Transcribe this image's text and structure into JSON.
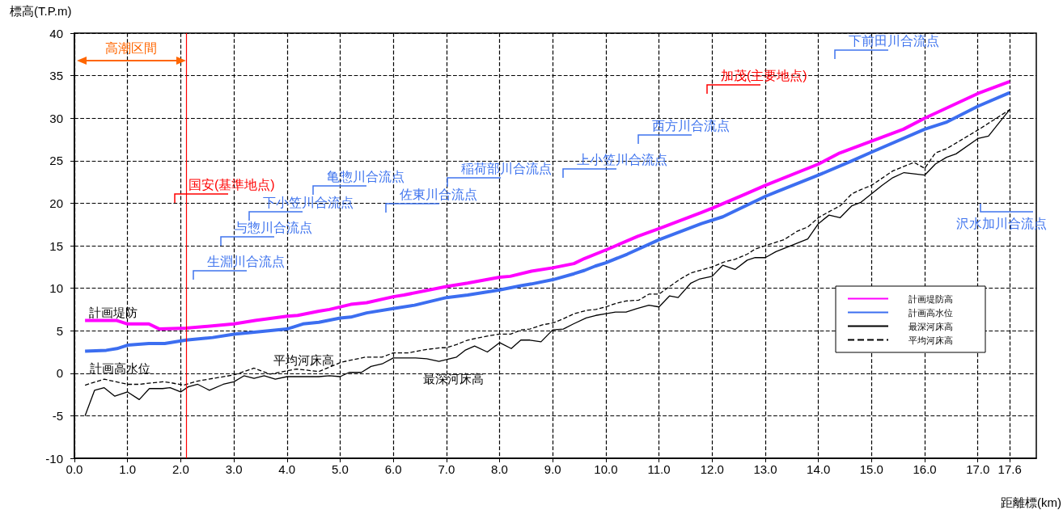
{
  "chart_data": {
    "type": "line",
    "xlabel": "距離標(km)",
    "ylabel": "標高(T.P.m)",
    "xlim": [
      0,
      18.1
    ],
    "ylim": [
      -10,
      40
    ],
    "xticks": [
      {
        "value": 0,
        "label": "0.0"
      },
      {
        "value": 1,
        "label": "1.0"
      },
      {
        "value": 2,
        "label": "2.0"
      },
      {
        "value": 3,
        "label": "3.0"
      },
      {
        "value": 4,
        "label": "4.0"
      },
      {
        "value": 5,
        "label": "5.0"
      },
      {
        "value": 6,
        "label": "6.0"
      },
      {
        "value": 7,
        "label": "7.0"
      },
      {
        "value": 8,
        "label": "8.0"
      },
      {
        "value": 9,
        "label": "9.0"
      },
      {
        "value": 10,
        "label": "10.0"
      },
      {
        "value": 11,
        "label": "11.0"
      },
      {
        "value": 12,
        "label": "12.0"
      },
      {
        "value": 13,
        "label": "13.0"
      },
      {
        "value": 14,
        "label": "14.0"
      },
      {
        "value": 15,
        "label": "15.0"
      },
      {
        "value": 16,
        "label": "16.0"
      },
      {
        "value": 17,
        "label": "17.0"
      },
      {
        "value": 17.6,
        "label": "17.6"
      }
    ],
    "yticks": [
      -10,
      -5,
      0,
      5,
      10,
      15,
      20,
      25,
      30,
      35,
      40
    ],
    "grid": true,
    "legend": "right",
    "marker": "none",
    "line_style": "solid",
    "series": [
      {
        "name": "計画堤防高",
        "color": "#ff00ff",
        "x": [
          0.2,
          0.8,
          1.0,
          1.4,
          1.6,
          2.1,
          3.0,
          3.4,
          4.0,
          4.2,
          4.6,
          4.8,
          5.2,
          5.5,
          6.0,
          6.2,
          7.0,
          7.4,
          8.0,
          8.2,
          8.6,
          9.0,
          9.4,
          9.6,
          10.0,
          10.6,
          11.0,
          11.8,
          12.0,
          12.6,
          13.0,
          14.0,
          14.4,
          15.0,
          15.6,
          16.0,
          17.0,
          17.6
        ],
        "values": [
          6.2,
          6.2,
          5.8,
          5.8,
          5.2,
          5.3,
          5.8,
          6.2,
          6.7,
          6.8,
          7.3,
          7.5,
          8.1,
          8.3,
          9.0,
          9.2,
          10.2,
          10.6,
          11.3,
          11.4,
          12.0,
          12.4,
          12.9,
          13.5,
          14.5,
          16.1,
          17.0,
          18.9,
          19.4,
          21.0,
          22.1,
          24.6,
          25.9,
          27.3,
          28.7,
          30.0,
          32.9,
          34.3
        ]
      },
      {
        "name": "計画高水位",
        "color": "#3c6ef0",
        "x": [
          0.2,
          0.6,
          0.8,
          1.0,
          1.4,
          1.7,
          2.1,
          2.6,
          3.0,
          4.0,
          4.3,
          4.6,
          5.0,
          5.2,
          5.5,
          6.0,
          6.4,
          7.0,
          7.4,
          8.0,
          8.4,
          8.6,
          9.0,
          9.4,
          9.6,
          9.8,
          10.0,
          10.4,
          11.0,
          11.8,
          12.2,
          13.0,
          13.2,
          14.0,
          14.6,
          15.0,
          16.0,
          16.4,
          17.0,
          17.6
        ],
        "values": [
          2.6,
          2.7,
          2.9,
          3.3,
          3.5,
          3.5,
          3.9,
          4.2,
          4.6,
          5.2,
          5.8,
          6.0,
          6.5,
          6.6,
          7.1,
          7.6,
          8.0,
          8.9,
          9.2,
          9.8,
          10.3,
          10.5,
          11.0,
          11.7,
          12.1,
          12.6,
          13.0,
          14.0,
          15.7,
          17.6,
          18.4,
          20.8,
          21.3,
          23.3,
          24.9,
          26.0,
          28.7,
          29.5,
          31.4,
          33.0
        ]
      },
      {
        "name": "最深河床高",
        "color": "#000000",
        "x": [
          0.2,
          0.38,
          0.56,
          0.76,
          1.0,
          1.22,
          1.41,
          1.66,
          1.8,
          2.0,
          2.14,
          2.32,
          2.54,
          2.8,
          3.0,
          3.19,
          3.38,
          3.57,
          3.78,
          4.0,
          4.6,
          4.8,
          5.0,
          5.17,
          5.4,
          5.58,
          5.79,
          6.0,
          6.42,
          6.63,
          6.86,
          7.0,
          7.19,
          7.35,
          7.53,
          7.77,
          8.0,
          8.22,
          8.4,
          8.57,
          8.78,
          9.0,
          9.2,
          9.39,
          9.63,
          9.81,
          10.0,
          10.18,
          10.38,
          10.58,
          10.81,
          11.0,
          11.2,
          11.36,
          11.6,
          11.77,
          12.0,
          12.2,
          12.43,
          12.66,
          12.81,
          13.0,
          13.2,
          13.4,
          13.8,
          14.0,
          14.2,
          14.41,
          14.63,
          14.8,
          15.0,
          15.2,
          15.4,
          15.61,
          16.0,
          16.2,
          16.41,
          16.59,
          17.0,
          17.2,
          17.43,
          17.6
        ],
        "values": [
          -5.0,
          -2.0,
          -1.7,
          -2.7,
          -2.2,
          -3.1,
          -1.8,
          -1.8,
          -1.7,
          -2.2,
          -1.6,
          -1.3,
          -2.0,
          -1.3,
          -1.0,
          -0.3,
          -0.6,
          -0.3,
          -0.7,
          -0.4,
          -0.4,
          -0.3,
          -0.4,
          0.1,
          0.1,
          0.8,
          1.1,
          1.8,
          1.8,
          1.7,
          1.4,
          1.6,
          1.9,
          2.7,
          3.2,
          2.5,
          3.6,
          2.9,
          3.9,
          3.9,
          3.7,
          5.1,
          5.2,
          5.8,
          6.5,
          6.8,
          7.0,
          7.2,
          7.2,
          7.6,
          8.0,
          7.8,
          9.1,
          8.9,
          10.6,
          11.1,
          11.4,
          12.7,
          12.2,
          13.3,
          13.6,
          13.6,
          14.3,
          14.8,
          15.8,
          17.6,
          18.6,
          18.3,
          19.7,
          20.1,
          21.1,
          22.1,
          23.0,
          23.6,
          23.3,
          24.6,
          25.4,
          25.8,
          27.6,
          27.9,
          29.7,
          31.0
        ]
      },
      {
        "name": "平均河床高",
        "color": "#000000",
        "line_style": "dashed",
        "x": [
          0.2,
          0.56,
          1.0,
          1.22,
          1.66,
          1.8,
          2.05,
          2.33,
          3.0,
          3.38,
          3.68,
          4.18,
          4.6,
          5.02,
          5.48,
          5.79,
          6.0,
          6.28,
          6.63,
          6.89,
          7.0,
          7.2,
          7.4,
          7.79,
          8.0,
          8.21,
          8.41,
          8.57,
          8.81,
          9.0,
          9.2,
          9.4,
          9.65,
          9.81,
          10.0,
          10.18,
          10.38,
          10.62,
          10.81,
          11.0,
          11.2,
          11.38,
          11.6,
          11.77,
          12.0,
          12.23,
          12.43,
          12.66,
          12.81,
          13.0,
          13.35,
          13.6,
          13.8,
          14.0,
          14.2,
          14.41,
          14.63,
          14.8,
          15.0,
          15.4,
          15.8,
          16.0,
          16.2,
          16.41,
          17.0,
          17.6
        ],
        "values": [
          -1.4,
          -0.7,
          -1.3,
          -1.3,
          -1.0,
          -1.1,
          -1.4,
          -0.9,
          -0.2,
          0.6,
          -0.1,
          0.5,
          0.2,
          1.3,
          1.9,
          1.9,
          2.4,
          2.4,
          2.8,
          3.0,
          3.0,
          3.4,
          3.9,
          4.4,
          4.6,
          4.6,
          5.1,
          5.2,
          5.7,
          5.9,
          6.4,
          7.0,
          7.4,
          7.5,
          7.8,
          8.2,
          8.5,
          8.6,
          9.3,
          9.3,
          10.2,
          11.0,
          11.8,
          12.1,
          12.5,
          13.1,
          13.4,
          14.0,
          14.6,
          15.0,
          15.7,
          16.7,
          17.2,
          18.3,
          19.0,
          19.7,
          21.1,
          21.6,
          22.1,
          23.8,
          24.8,
          24.1,
          25.9,
          26.4,
          28.6,
          31.0
        ]
      }
    ],
    "ref_lines": [
      {
        "axis": "x",
        "value": 2.1,
        "color": "#ff0000"
      }
    ],
    "annotations": [
      "国安(基準地点)",
      "加茂(主要地点)",
      "生淵川合流点",
      "与惣川合流点",
      "下小笠川合流点",
      "亀惣川合流点",
      "佐東川合流点",
      "稲荷部川合流点",
      "上小笠川合流点",
      "西方川合流点",
      "下前田川合流点",
      "沢水加川合流点",
      "計画堤防",
      "計画高水位",
      "平均河床高",
      "最深河床高",
      "高潮区間"
    ]
  }
}
